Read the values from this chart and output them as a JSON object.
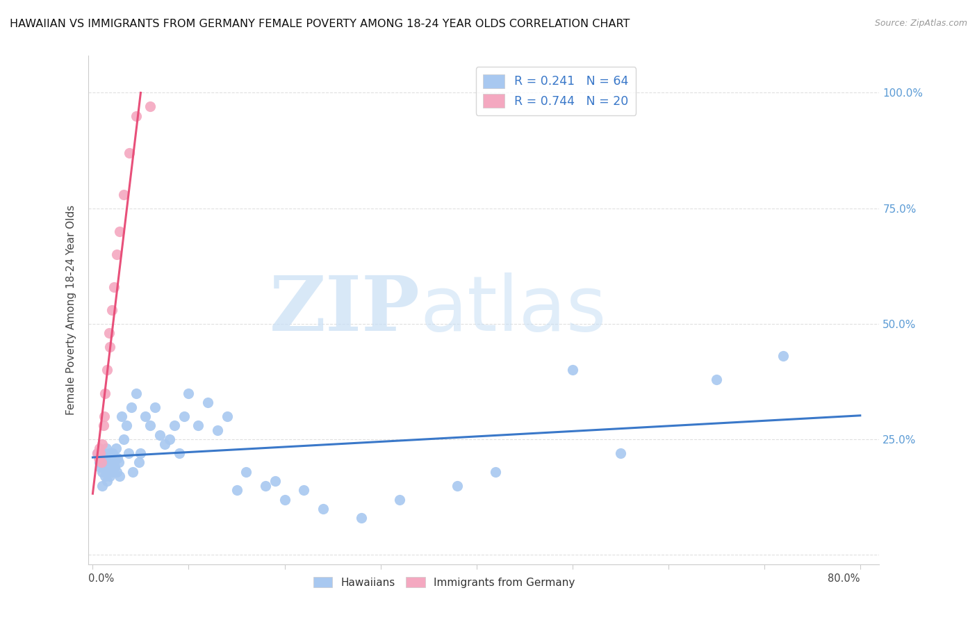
{
  "title": "HAWAIIAN VS IMMIGRANTS FROM GERMANY FEMALE POVERTY AMONG 18-24 YEAR OLDS CORRELATION CHART",
  "source": "Source: ZipAtlas.com",
  "ylabel": "Female Poverty Among 18-24 Year Olds",
  "xlim": [
    0.0,
    0.8
  ],
  "ylim": [
    0.0,
    1.05
  ],
  "hawaiian_R": 0.241,
  "hawaiian_N": 64,
  "germany_R": 0.744,
  "germany_N": 20,
  "hawaiian_color": "#a8c8f0",
  "germany_color": "#f4a8c0",
  "hawaiian_line_color": "#3a78c9",
  "germany_line_color": "#e8507a",
  "watermark_zip": "ZIP",
  "watermark_atlas": "atlas",
  "watermark_color_zip": "#c8dff5",
  "watermark_color_atlas": "#c8dff5",
  "hawaiian_x": [
    0.005,
    0.007,
    0.008,
    0.009,
    0.01,
    0.01,
    0.011,
    0.012,
    0.013,
    0.014,
    0.015,
    0.015,
    0.016,
    0.017,
    0.018,
    0.018,
    0.019,
    0.02,
    0.021,
    0.022,
    0.023,
    0.024,
    0.025,
    0.026,
    0.027,
    0.028,
    0.03,
    0.032,
    0.035,
    0.037,
    0.04,
    0.042,
    0.045,
    0.048,
    0.05,
    0.055,
    0.06,
    0.065,
    0.07,
    0.075,
    0.08,
    0.085,
    0.09,
    0.095,
    0.1,
    0.11,
    0.12,
    0.13,
    0.14,
    0.15,
    0.16,
    0.18,
    0.19,
    0.2,
    0.22,
    0.24,
    0.28,
    0.32,
    0.38,
    0.42,
    0.5,
    0.55,
    0.65,
    0.72
  ],
  "hawaiian_y": [
    0.22,
    0.2,
    0.19,
    0.21,
    0.18,
    0.15,
    0.22,
    0.2,
    0.17,
    0.23,
    0.18,
    0.16,
    0.21,
    0.19,
    0.22,
    0.17,
    0.2,
    0.18,
    0.22,
    0.2,
    0.19,
    0.23,
    0.18,
    0.21,
    0.2,
    0.17,
    0.3,
    0.25,
    0.28,
    0.22,
    0.32,
    0.18,
    0.35,
    0.2,
    0.22,
    0.3,
    0.28,
    0.32,
    0.26,
    0.24,
    0.25,
    0.28,
    0.22,
    0.3,
    0.35,
    0.28,
    0.33,
    0.27,
    0.3,
    0.14,
    0.18,
    0.15,
    0.16,
    0.12,
    0.14,
    0.1,
    0.08,
    0.12,
    0.15,
    0.18,
    0.4,
    0.22,
    0.38,
    0.43
  ],
  "germany_x": [
    0.005,
    0.006,
    0.007,
    0.008,
    0.009,
    0.01,
    0.011,
    0.012,
    0.013,
    0.015,
    0.017,
    0.018,
    0.02,
    0.022,
    0.025,
    0.028,
    0.032,
    0.038,
    0.045,
    0.06
  ],
  "germany_y": [
    0.22,
    0.21,
    0.23,
    0.22,
    0.2,
    0.24,
    0.28,
    0.3,
    0.35,
    0.4,
    0.48,
    0.45,
    0.53,
    0.58,
    0.65,
    0.7,
    0.78,
    0.87,
    0.95,
    0.97
  ],
  "right_ytick_vals": [
    0.0,
    0.25,
    0.5,
    0.75,
    1.0
  ],
  "right_yticklabels": [
    "",
    "25.0%",
    "50.0%",
    "75.0%",
    "100.0%"
  ]
}
